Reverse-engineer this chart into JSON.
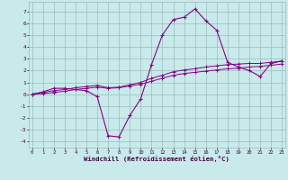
{
  "xlabel": "Windchill (Refroidissement éolien,°C)",
  "background_color": "#c8eaea",
  "grid_color": "#9bbcbc",
  "line_color": "#880088",
  "x_hours": [
    0,
    1,
    2,
    3,
    4,
    5,
    6,
    7,
    8,
    9,
    10,
    11,
    12,
    13,
    14,
    15,
    16,
    17,
    18,
    19,
    20,
    21,
    22,
    23
  ],
  "windchill": [
    0.0,
    0.2,
    0.5,
    0.5,
    0.4,
    0.3,
    -0.2,
    -3.5,
    -3.6,
    -1.8,
    -0.4,
    2.5,
    5.0,
    6.3,
    6.5,
    7.2,
    6.2,
    5.4,
    2.7,
    2.3,
    2.0,
    1.5,
    2.6,
    2.8
  ],
  "temp_line1": [
    0.0,
    0.15,
    0.3,
    0.4,
    0.55,
    0.65,
    0.75,
    0.55,
    0.6,
    0.8,
    1.0,
    1.35,
    1.6,
    1.9,
    2.05,
    2.15,
    2.3,
    2.4,
    2.5,
    2.55,
    2.6,
    2.6,
    2.7,
    2.8
  ],
  "temp_line2": [
    0.0,
    0.05,
    0.15,
    0.25,
    0.4,
    0.5,
    0.6,
    0.5,
    0.55,
    0.7,
    0.85,
    1.1,
    1.35,
    1.6,
    1.75,
    1.85,
    1.95,
    2.05,
    2.15,
    2.2,
    2.3,
    2.35,
    2.45,
    2.55
  ],
  "ylim": [
    -4.5,
    7.8
  ],
  "yticks": [
    -4,
    -3,
    -2,
    -1,
    0,
    1,
    2,
    3,
    4,
    5,
    6,
    7
  ],
  "xlim": [
    -0.3,
    23.3
  ]
}
